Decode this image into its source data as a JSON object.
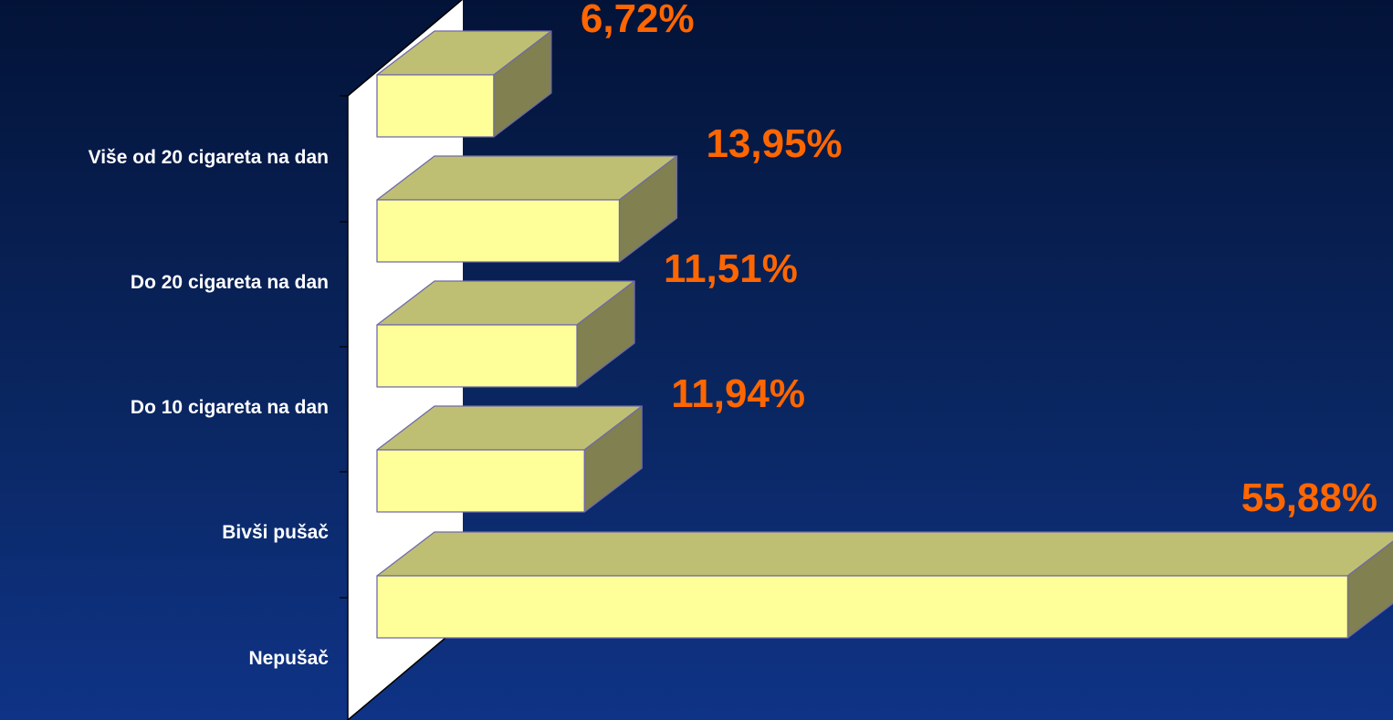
{
  "chart_data": {
    "type": "bar",
    "orientation": "horizontal",
    "style": "3d",
    "categories": [
      "Nepušač",
      "Bivši pušač",
      "Do 10 cigareta na dan",
      "Do 20 cigareta na dan",
      "Više od 20 cigareta na dan"
    ],
    "values": [
      55.88,
      11.94,
      11.51,
      13.95,
      6.72
    ],
    "value_labels": [
      "55,88%",
      "11,94%",
      "11,51%",
      "13,95%",
      "6,72%"
    ],
    "title": "",
    "xlabel": "",
    "ylabel": "",
    "xlim": [
      0,
      56
    ],
    "grid": false,
    "legend": "none"
  },
  "colors": {
    "bar_front": "#ffff99",
    "bar_top": "#bfbf74",
    "bar_side": "#808050",
    "bar_edge": "#6f6aa8",
    "value_label": "#ff6600",
    "category_label": "#ffffff",
    "wall": "#ffffff",
    "axis": "#000000"
  }
}
